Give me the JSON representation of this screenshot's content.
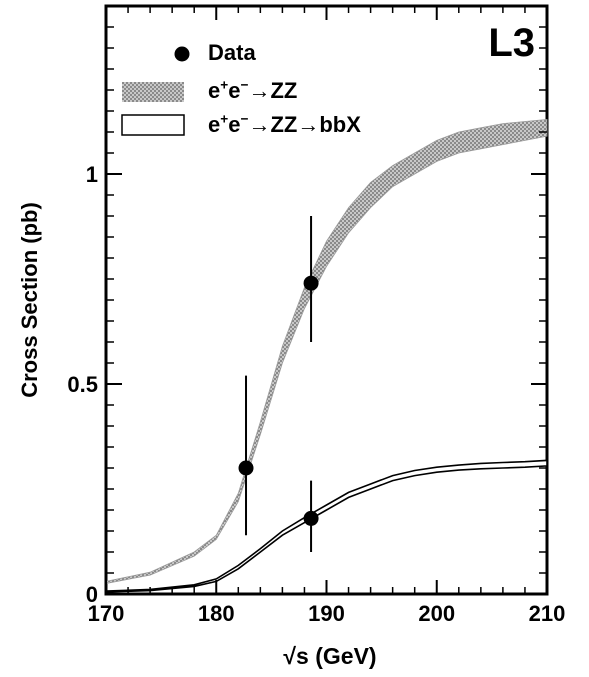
{
  "experiment_label": "L3",
  "legend": {
    "data_label": "Data",
    "zz_label_html": "e<sup>+</sup>e<sup>−</sup>→ZZ",
    "zz_bbx_label_html": "e<sup>+</sup>e<sup>−</sup>→ZZ→bbX",
    "placement": "top-left"
  },
  "colors": {
    "zz_band": "#9a9a9a",
    "bbx_band_edge": "#000000",
    "data_marker": "#000000"
  },
  "chart_data": {
    "type": "line",
    "xlabel": "√s (GeV)",
    "ylabel": "Cross Section (pb)",
    "xlim": [
      170,
      210
    ],
    "ylim": [
      0,
      1.4
    ],
    "x_ticks": [
      170,
      180,
      190,
      200,
      210
    ],
    "y_ticks": [
      0,
      0.5,
      1
    ],
    "y_tick_labels": [
      "0",
      "0.5",
      "1"
    ],
    "grid": false,
    "series": [
      {
        "name": "e+e−→ZZ",
        "style": "band",
        "x": [
          170,
          174,
          178,
          180,
          182,
          184,
          186,
          188,
          190,
          192,
          194,
          196,
          198,
          200,
          202,
          204,
          206,
          208,
          210
        ],
        "lower": [
          0.025,
          0.045,
          0.09,
          0.13,
          0.22,
          0.38,
          0.55,
          0.68,
          0.78,
          0.86,
          0.92,
          0.97,
          1.0,
          1.03,
          1.05,
          1.06,
          1.07,
          1.08,
          1.09
        ],
        "upper": [
          0.03,
          0.052,
          0.1,
          0.14,
          0.24,
          0.41,
          0.59,
          0.73,
          0.84,
          0.92,
          0.98,
          1.02,
          1.05,
          1.08,
          1.1,
          1.11,
          1.12,
          1.125,
          1.13
        ]
      },
      {
        "name": "e+e−→ZZ→bbX",
        "style": "band",
        "x": [
          170,
          174,
          178,
          180,
          182,
          184,
          186,
          188,
          190,
          192,
          194,
          196,
          198,
          200,
          202,
          204,
          206,
          208,
          210
        ],
        "lower": [
          0.005,
          0.008,
          0.018,
          0.03,
          0.06,
          0.1,
          0.14,
          0.17,
          0.2,
          0.23,
          0.25,
          0.27,
          0.282,
          0.29,
          0.295,
          0.298,
          0.3,
          0.302,
          0.305
        ],
        "upper": [
          0.007,
          0.011,
          0.022,
          0.036,
          0.068,
          0.108,
          0.15,
          0.182,
          0.212,
          0.242,
          0.262,
          0.282,
          0.294,
          0.302,
          0.307,
          0.311,
          0.313,
          0.315,
          0.318
        ]
      }
    ],
    "points": [
      {
        "x": 182.7,
        "y": 0.3,
        "err_low": 0.16,
        "err_high": 0.22
      },
      {
        "x": 188.6,
        "y": 0.74,
        "err_low": 0.14,
        "err_high": 0.16
      },
      {
        "x": 188.6,
        "y": 0.18,
        "err_low": 0.08,
        "err_high": 0.09
      }
    ]
  }
}
